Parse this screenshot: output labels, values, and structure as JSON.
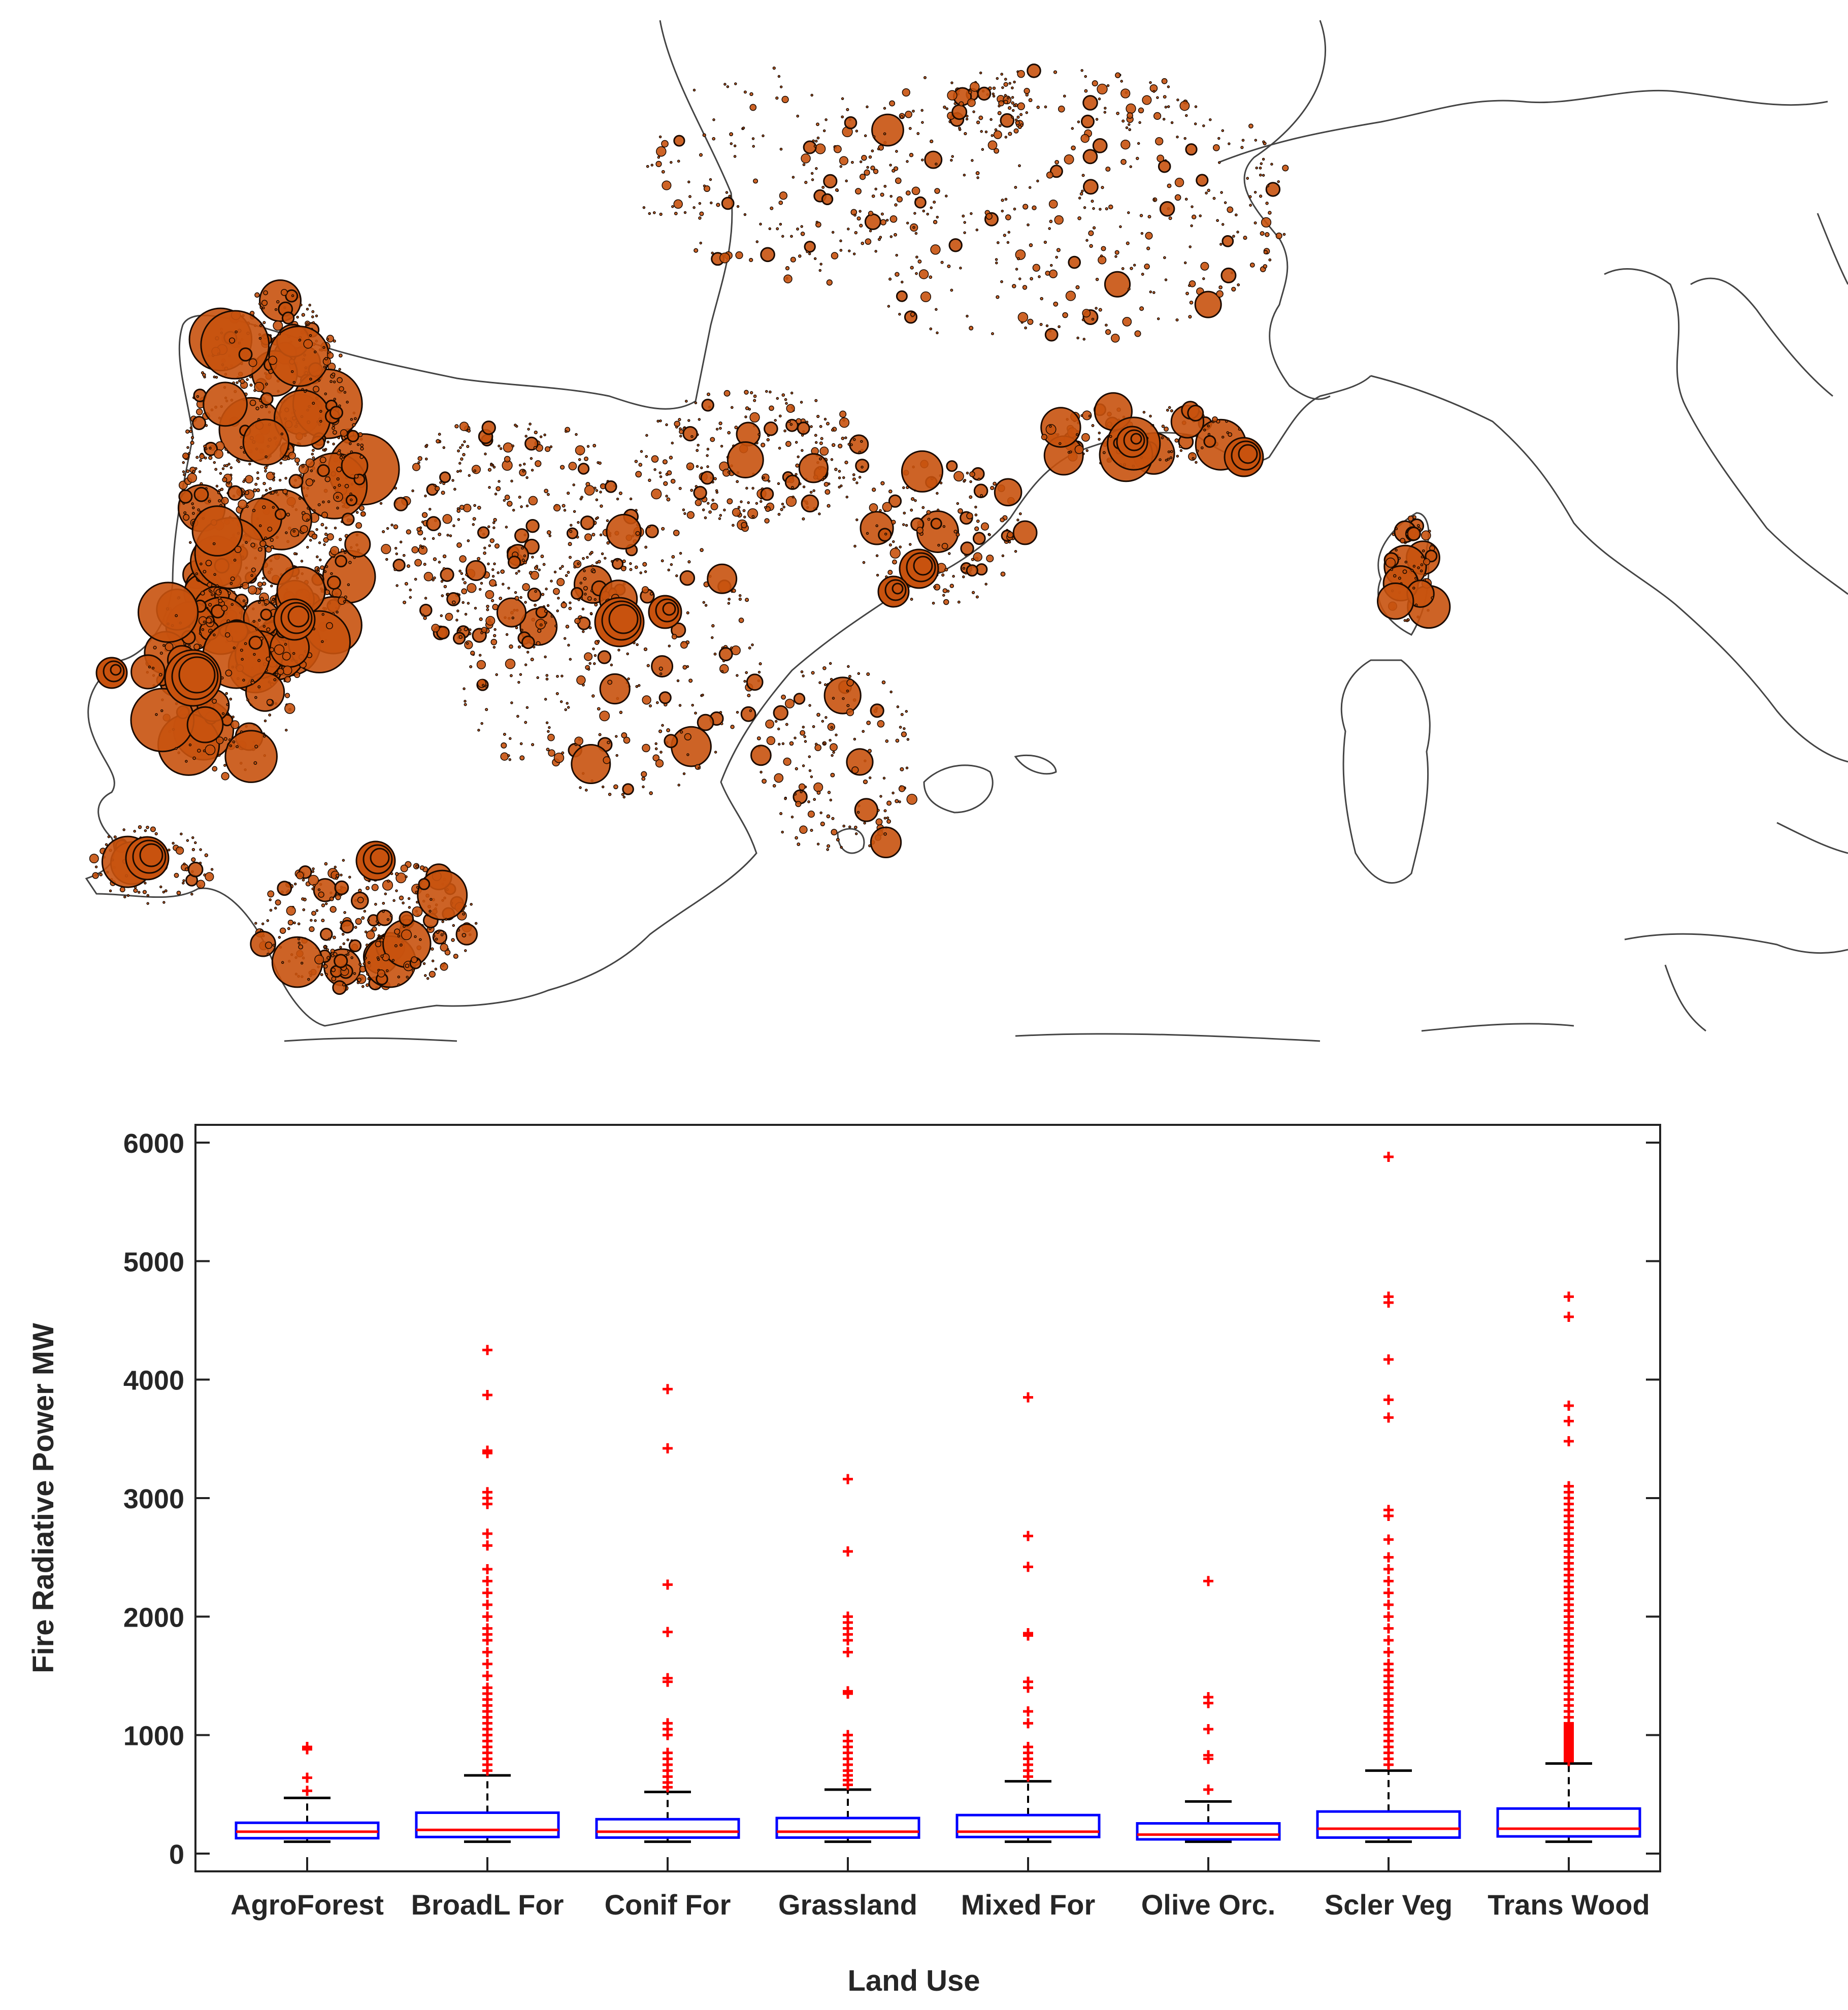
{
  "map": {
    "region": "Iberian Peninsula, southern France, Corsica, Sardinia and western Italy",
    "marker_fill": "#c8520e",
    "marker_stroke": "#1a0a00",
    "coastline_color": "#444444"
  },
  "chart_data": {
    "type": "box",
    "title": "",
    "xlabel": "Land Use",
    "ylabel": "Fire Radiative Power MW",
    "ylim": [
      -150,
      6150
    ],
    "yticks": [
      0,
      1000,
      2000,
      3000,
      4000,
      5000,
      6000
    ],
    "grid": false,
    "categories": [
      "AgroForest",
      "BroadL For",
      "Conif For",
      "Grassland",
      "Mixed For",
      "Olive Orc.",
      "Scler Veg",
      "Trans Wood"
    ],
    "colors": {
      "box": "#0000ff",
      "median": "#ff0000",
      "whisker": "#000000",
      "outlier": "#ff0000"
    },
    "boxes": [
      {
        "category": "AgroForest",
        "whisker_low": 100,
        "q1": 130,
        "median": 185,
        "q3": 260,
        "whisker_high": 470,
        "outliers": [
          530,
          640,
          880,
          900
        ]
      },
      {
        "category": "BroadL For",
        "whisker_low": 100,
        "q1": 140,
        "median": 200,
        "q3": 345,
        "whisker_high": 660,
        "outliers": [
          700,
          750,
          800,
          850,
          900,
          950,
          1000,
          1050,
          1100,
          1150,
          1200,
          1250,
          1300,
          1350,
          1400,
          1500,
          1600,
          1700,
          1800,
          1850,
          1900,
          2000,
          2100,
          2200,
          2300,
          2400,
          2600,
          2700,
          2950,
          3000,
          3050,
          3380,
          3400,
          3870,
          4250
        ]
      },
      {
        "category": "Conif For",
        "whisker_low": 100,
        "q1": 135,
        "median": 185,
        "q3": 290,
        "whisker_high": 520,
        "outliers": [
          560,
          600,
          650,
          700,
          750,
          800,
          850,
          1000,
          1050,
          1100,
          1450,
          1480,
          1870,
          2270,
          3420,
          3920
        ]
      },
      {
        "category": "Grassland",
        "whisker_low": 100,
        "q1": 135,
        "median": 185,
        "q3": 300,
        "whisker_high": 540,
        "outliers": [
          580,
          620,
          660,
          700,
          750,
          800,
          850,
          900,
          950,
          1000,
          1350,
          1370,
          1700,
          1800,
          1850,
          1900,
          1950,
          2000,
          2550,
          3160
        ]
      },
      {
        "category": "Mixed For",
        "whisker_low": 100,
        "q1": 140,
        "median": 185,
        "q3": 325,
        "whisker_high": 610,
        "outliers": [
          650,
          700,
          750,
          800,
          850,
          900,
          1100,
          1200,
          1400,
          1450,
          1840,
          1860,
          2420,
          2680,
          3850
        ]
      },
      {
        "category": "Olive Orc.",
        "whisker_low": 100,
        "q1": 120,
        "median": 160,
        "q3": 255,
        "whisker_high": 440,
        "outliers": [
          540,
          800,
          830,
          1050,
          1270,
          1320,
          2300
        ]
      },
      {
        "category": "Scler Veg",
        "whisker_low": 100,
        "q1": 135,
        "median": 210,
        "q3": 355,
        "whisker_high": 700,
        "outliers": [
          750,
          800,
          850,
          900,
          950,
          1000,
          1050,
          1100,
          1150,
          1200,
          1250,
          1300,
          1350,
          1400,
          1450,
          1500,
          1550,
          1600,
          1700,
          1800,
          1900,
          2000,
          2100,
          2200,
          2300,
          2400,
          2500,
          2650,
          2850,
          2900,
          3680,
          3830,
          4170,
          4650,
          4700,
          5880
        ]
      },
      {
        "category": "Trans Wood",
        "whisker_low": 100,
        "q1": 145,
        "median": 210,
        "q3": 380,
        "whisker_high": 760,
        "outliers": [
          780,
          800,
          820,
          840,
          860,
          880,
          900,
          920,
          940,
          960,
          980,
          1000,
          1020,
          1040,
          1060,
          1080,
          1100,
          1150,
          1200,
          1250,
          1300,
          1350,
          1400,
          1450,
          1500,
          1550,
          1600,
          1650,
          1700,
          1750,
          1800,
          1850,
          1900,
          1950,
          2000,
          2050,
          2100,
          2150,
          2200,
          2250,
          2300,
          2350,
          2400,
          2450,
          2500,
          2550,
          2600,
          2650,
          2700,
          2750,
          2800,
          2850,
          2900,
          2950,
          3000,
          3050,
          3100,
          3480,
          3650,
          3780,
          4530,
          4700
        ]
      }
    ]
  }
}
